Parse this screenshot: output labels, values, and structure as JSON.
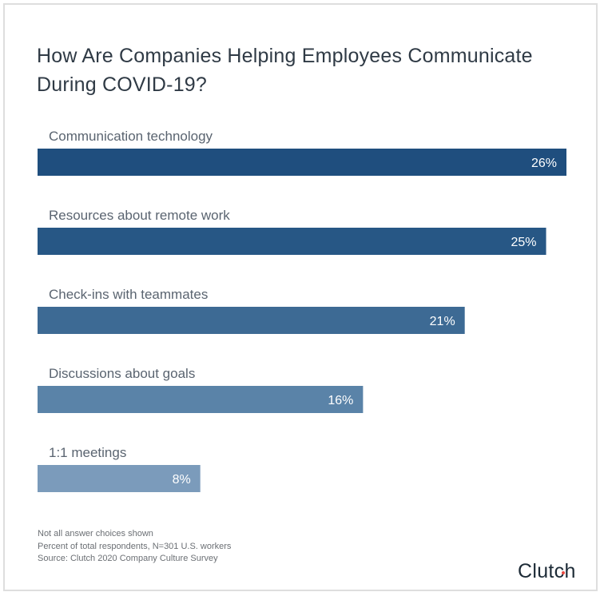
{
  "chart_data": {
    "type": "bar",
    "orientation": "horizontal",
    "title": "How Are Companies Helping Employees Communicate During COVID-19?",
    "categories": [
      "Communication technology",
      "Resources about remote work",
      "Check-ins with teammates",
      "Discussions about goals",
      "1:1 meetings"
    ],
    "values": [
      26,
      25,
      21,
      16,
      8
    ],
    "value_labels": [
      "26%",
      "25%",
      "21%",
      "16%",
      "8%"
    ],
    "unit": "%",
    "xlim": [
      0,
      26
    ],
    "grid": false,
    "legend": "none",
    "colors": [
      "#1f4e7e",
      "#275785",
      "#3d6a94",
      "#5a83a8",
      "#7b9bbb"
    ]
  },
  "notes": [
    "Not all answer choices shown",
    "Percent of total respondents, N=301 U.S. workers",
    "Source: Clutch 2020 Company Culture Survey"
  ],
  "brand": {
    "logo_text": "Clutch",
    "accent_color": "#e8483f"
  },
  "text_color": "#2f3a45",
  "label_color": "#5a6470"
}
